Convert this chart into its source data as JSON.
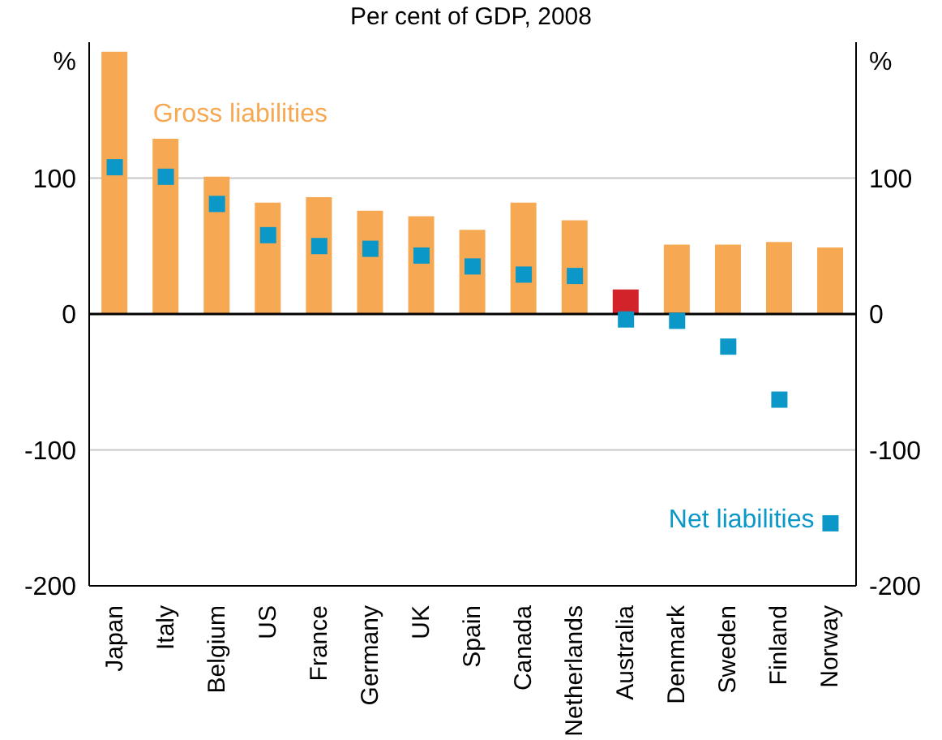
{
  "chart_data": {
    "type": "bar",
    "title": "Per cent of GDP, 2008",
    "ylabel": "%",
    "y2label": "%",
    "categories": [
      "Japan",
      "Italy",
      "Belgium",
      "US",
      "France",
      "Germany",
      "UK",
      "Spain",
      "Canada",
      "Netherlands",
      "Australia",
      "Denmark",
      "Sweden",
      "Finland",
      "Norway"
    ],
    "series": [
      {
        "name": "Gross liabilities",
        "color": "#f7a852",
        "colors": [
          "#f7a852",
          "#f7a852",
          "#f7a852",
          "#f7a852",
          "#f7a852",
          "#f7a852",
          "#f7a852",
          "#f7a852",
          "#f7a852",
          "#f7a852",
          "#d2232a",
          "#f7a852",
          "#f7a852",
          "#f7a852",
          "#f7a852"
        ],
        "values": [
          193,
          129,
          101,
          82,
          86,
          76,
          72,
          62,
          82,
          69,
          18,
          51,
          51,
          53,
          49
        ]
      },
      {
        "name": "Net liabilities",
        "type": "scatter",
        "marker": "square",
        "color": "#0b98c8",
        "values": [
          108,
          101,
          81,
          58,
          50,
          48,
          43,
          35,
          29,
          28,
          -4,
          -5,
          -24,
          -63,
          -154
        ]
      }
    ],
    "ylim": [
      -200,
      200
    ],
    "yticks": [
      -200,
      -100,
      0,
      100
    ],
    "y2lim": [
      -200,
      200
    ],
    "y2ticks": [
      -200,
      -100,
      0,
      100
    ],
    "grid": "y",
    "ref_lines": [
      {
        "axis": "y",
        "value": 0,
        "color": "#000000"
      }
    ]
  }
}
